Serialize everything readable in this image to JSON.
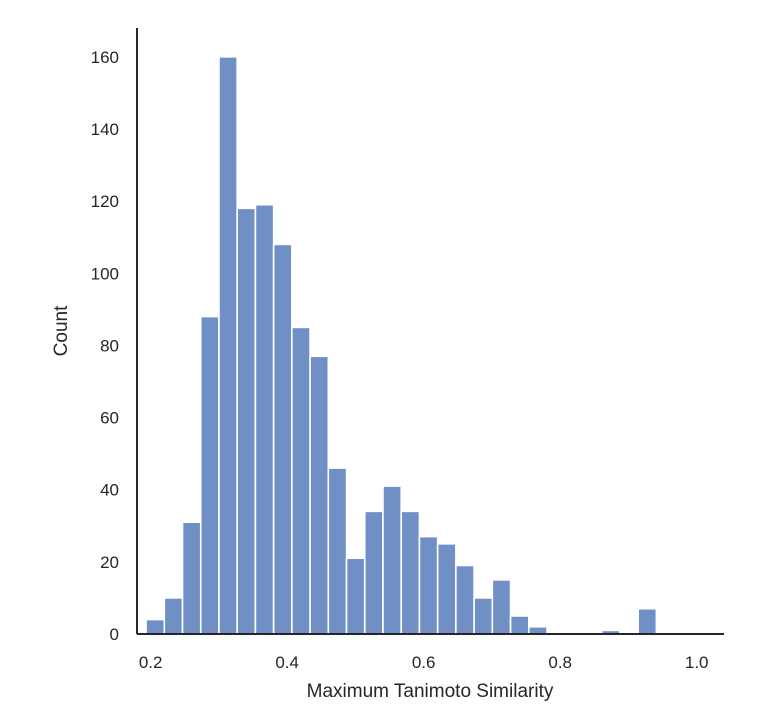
{
  "chart_data": {
    "type": "bar",
    "xlabel": "Maximum Tanimoto Similarity",
    "ylabel": "Count",
    "xlim": [
      0.18,
      1.04
    ],
    "ylim": [
      0,
      168
    ],
    "bin_width": 0.0267,
    "x_start": 0.1933,
    "x_ticks": [
      0.2,
      0.4,
      0.6,
      0.8,
      1.0
    ],
    "x_tick_labels": [
      "0.2",
      "0.4",
      "0.6",
      "0.8",
      "1.0"
    ],
    "y_ticks": [
      0,
      20,
      40,
      60,
      80,
      100,
      120,
      140,
      160
    ],
    "y_tick_labels": [
      "0",
      "20",
      "40",
      "60",
      "80",
      "100",
      "120",
      "140",
      "160"
    ],
    "values": [
      4,
      10,
      31,
      88,
      160,
      118,
      119,
      108,
      85,
      77,
      46,
      21,
      34,
      41,
      34,
      27,
      25,
      19,
      10,
      15,
      5,
      2,
      0,
      0,
      0,
      1,
      0,
      7
    ],
    "bar_color": "#6f8fc5",
    "grid": false
  }
}
